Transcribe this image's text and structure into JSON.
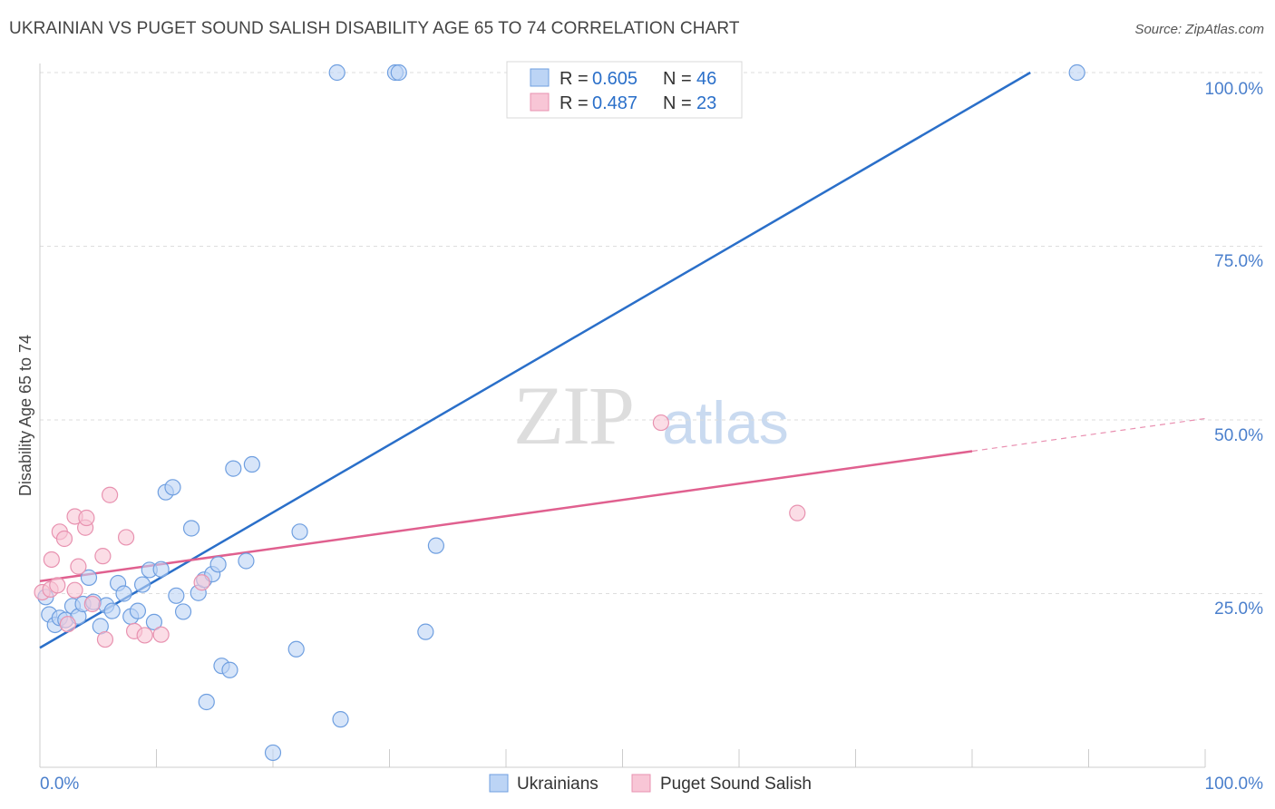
{
  "title": "UKRAINIAN VS PUGET SOUND SALISH DISABILITY AGE 65 TO 74 CORRELATION CHART",
  "source": "Source: ZipAtlas.com",
  "watermark": {
    "zip": "ZIP",
    "atlas": "atlas"
  },
  "chart_data": {
    "type": "scatter",
    "title": "UKRAINIAN VS PUGET SOUND SALISH DISABILITY AGE 65 TO 74 CORRELATION CHART",
    "xlabel": "",
    "ylabel": "Disability Age 65 to 74",
    "xlim": [
      0,
      100
    ],
    "ylim": [
      0,
      100
    ],
    "x_tick_labels": [
      "0.0%",
      "100.0%"
    ],
    "y_ticks": [
      25,
      50,
      75,
      100
    ],
    "y_tick_labels": [
      "25.0%",
      "50.0%",
      "75.0%",
      "100.0%"
    ],
    "legend": [
      {
        "r_label": "R =",
        "r": "0.605",
        "n_label": "N =",
        "n": "46"
      },
      {
        "r_label": "R =",
        "r": "0.487",
        "n_label": "N =",
        "n": "23"
      }
    ],
    "series": [
      {
        "name": "Ukrainians",
        "color": "#6f9fe0",
        "fill": "#bcd4f5",
        "line_color": "#2a6fc9",
        "trend": {
          "x0": 0,
          "y0": 17.2,
          "x1": 85.0,
          "y1": 100.0
        },
        "points": [
          [
            0.5,
            24.5
          ],
          [
            0.8,
            22.0
          ],
          [
            1.3,
            20.5
          ],
          [
            1.7,
            21.5
          ],
          [
            2.2,
            21.2
          ],
          [
            2.8,
            23.2
          ],
          [
            3.3,
            21.7
          ],
          [
            3.7,
            23.5
          ],
          [
            4.2,
            27.3
          ],
          [
            4.6,
            23.8
          ],
          [
            5.2,
            20.3
          ],
          [
            5.7,
            23.3
          ],
          [
            6.2,
            22.5
          ],
          [
            6.7,
            26.5
          ],
          [
            7.2,
            25.0
          ],
          [
            7.8,
            21.7
          ],
          [
            8.4,
            22.5
          ],
          [
            8.8,
            26.3
          ],
          [
            9.4,
            28.4
          ],
          [
            9.8,
            20.9
          ],
          [
            10.4,
            28.5
          ],
          [
            10.8,
            39.6
          ],
          [
            11.4,
            40.3
          ],
          [
            11.7,
            24.7
          ],
          [
            12.3,
            22.4
          ],
          [
            13.0,
            34.4
          ],
          [
            13.6,
            25.1
          ],
          [
            14.1,
            27.0
          ],
          [
            14.3,
            9.4
          ],
          [
            14.8,
            27.8
          ],
          [
            15.3,
            29.2
          ],
          [
            15.6,
            14.6
          ],
          [
            16.3,
            14.0
          ],
          [
            16.6,
            43.0
          ],
          [
            17.7,
            29.7
          ],
          [
            18.2,
            43.6
          ],
          [
            20.0,
            2.1
          ],
          [
            22.0,
            17.0
          ],
          [
            22.3,
            33.9
          ],
          [
            25.5,
            100.0
          ],
          [
            25.8,
            6.9
          ],
          [
            30.5,
            100.0
          ],
          [
            30.8,
            100.0
          ],
          [
            33.1,
            19.5
          ],
          [
            34.0,
            31.9
          ],
          [
            89.0,
            100.0
          ]
        ]
      },
      {
        "name": "Puget Sound Salish",
        "color": "#e892b0",
        "fill": "#f8c6d6",
        "line_color": "#e0608f",
        "trend": {
          "x0": 0,
          "y0": 26.8,
          "x1": 80.0,
          "y1": 45.5
        },
        "trend_ext": {
          "x0": 80.0,
          "y0": 45.5,
          "x1": 100.0,
          "y1": 50.2
        },
        "points": [
          [
            0.2,
            25.2
          ],
          [
            0.9,
            25.6
          ],
          [
            1.0,
            29.9
          ],
          [
            1.5,
            26.2
          ],
          [
            1.7,
            33.9
          ],
          [
            2.1,
            32.9
          ],
          [
            2.4,
            20.6
          ],
          [
            3.0,
            25.5
          ],
          [
            3.0,
            36.1
          ],
          [
            3.3,
            28.9
          ],
          [
            3.9,
            34.5
          ],
          [
            4.0,
            35.9
          ],
          [
            4.5,
            23.5
          ],
          [
            5.4,
            30.4
          ],
          [
            5.6,
            18.4
          ],
          [
            6.0,
            39.2
          ],
          [
            7.4,
            33.1
          ],
          [
            8.1,
            19.6
          ],
          [
            9.0,
            19.0
          ],
          [
            10.4,
            19.1
          ],
          [
            13.9,
            26.6
          ],
          [
            53.3,
            49.6
          ],
          [
            65.0,
            36.6
          ]
        ]
      }
    ]
  }
}
